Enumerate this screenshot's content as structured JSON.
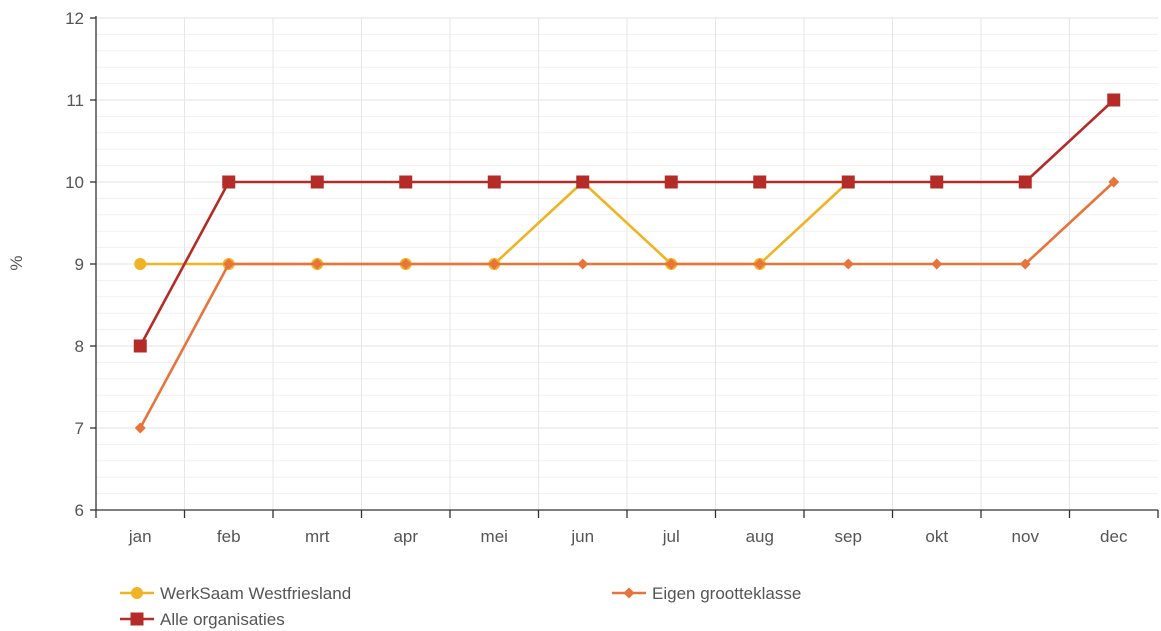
{
  "chart_data": {
    "type": "line",
    "title": "",
    "xlabel": "",
    "ylabel": "%",
    "categories": [
      "jan",
      "feb",
      "mrt",
      "apr",
      "mei",
      "jun",
      "jul",
      "aug",
      "sep",
      "okt",
      "nov",
      "dec"
    ],
    "ylim": [
      6,
      12
    ],
    "yticks": [
      6,
      7,
      8,
      9,
      10,
      11,
      12
    ],
    "grid": true,
    "legend_position": "bottom-left",
    "series": [
      {
        "name": "WerkSaam Westfriesland",
        "color": "#f0b323",
        "marker": "circle",
        "values": [
          9,
          9,
          9,
          9,
          9,
          10,
          9,
          9,
          10,
          null,
          null,
          null
        ]
      },
      {
        "name": "Eigen grootteklasse",
        "color": "#e8743b",
        "marker": "diamond",
        "values": [
          7,
          9,
          9,
          9,
          9,
          9,
          9,
          9,
          9,
          9,
          9,
          10
        ]
      },
      {
        "name": "Alle organisaties",
        "color": "#b52b27",
        "marker": "square",
        "values": [
          8,
          10,
          10,
          10,
          10,
          10,
          10,
          10,
          10,
          10,
          10,
          11
        ]
      }
    ]
  }
}
